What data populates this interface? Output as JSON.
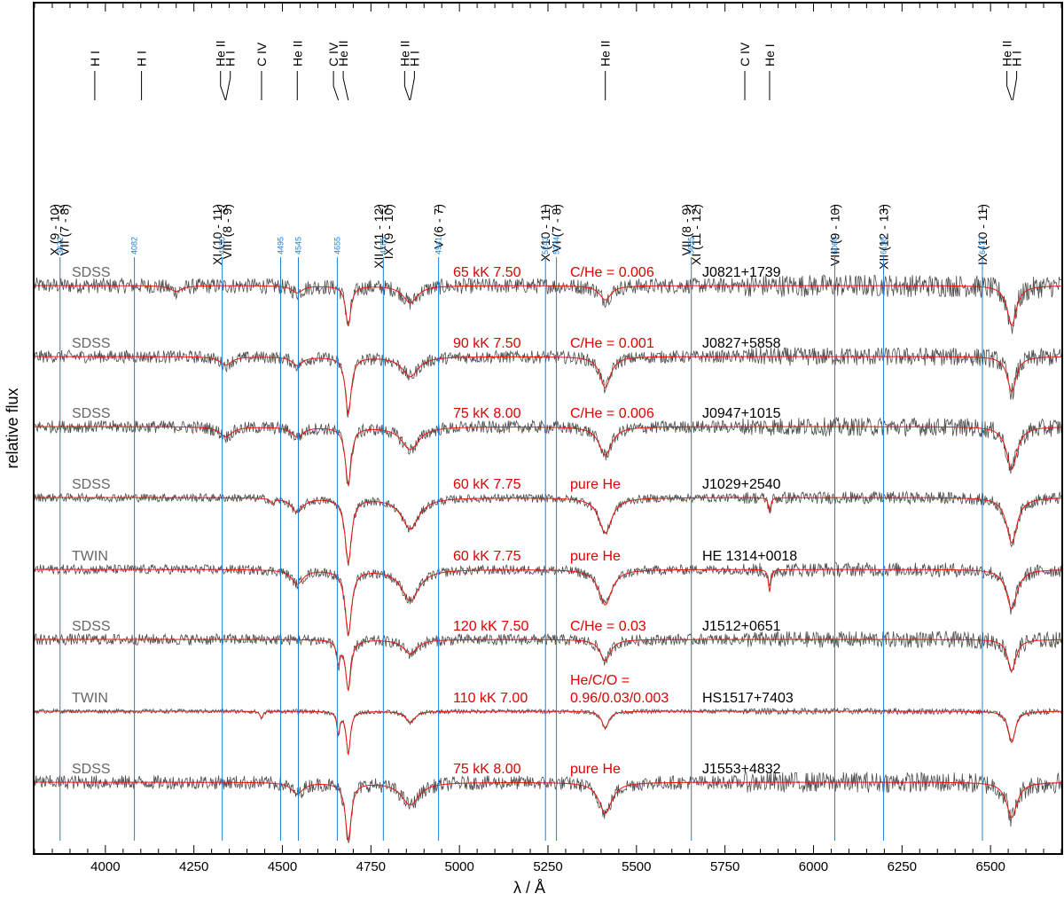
{
  "chart_data": {
    "type": "line",
    "xlabel": "λ / Å",
    "ylabel": "relative flux",
    "xlim": [
      3800,
      6700
    ],
    "x_ticks": [
      4000,
      4250,
      4500,
      4750,
      5000,
      5250,
      5500,
      5750,
      6000,
      6250,
      6500
    ],
    "grid": false,
    "colors": {
      "observed": "#4d4d4d",
      "model": "#e8190f",
      "marker": "#1e7fd6",
      "model_text": "#e00000",
      "source": "#666666"
    },
    "line_ids": [
      {
        "label": "H I",
        "x": 3970
      },
      {
        "label": "H I",
        "x": 4102
      },
      {
        "label": "He II",
        "x": 4339
      },
      {
        "label": "H I",
        "x": 4340
      },
      {
        "label": "C IV",
        "x": 4441
      },
      {
        "label": "He II",
        "x": 4542
      },
      {
        "label": "C IV",
        "x": 4658
      },
      {
        "label": "He II",
        "x": 4686
      },
      {
        "label": "He II",
        "x": 4859
      },
      {
        "label": "H I",
        "x": 4861
      },
      {
        "label": "He II",
        "x": 5412
      },
      {
        "label": "C IV",
        "x": 5806
      },
      {
        "label": "He I",
        "x": 5876
      },
      {
        "label": "He II",
        "x": 6560
      },
      {
        "label": "H I",
        "x": 6563
      }
    ],
    "ultra_high_excitation_ids": [
      {
        "label": "X (9 - 10)",
        "x": 3870
      },
      {
        "label": "VII (7 - 8)",
        "x": 3872
      },
      {
        "label": "XI (10 - 11)",
        "x": 4330
      },
      {
        "label": "VIII (8 - 9)",
        "x": 4332
      },
      {
        "label": "XII (11 - 12)",
        "x": 4785
      },
      {
        "label": "IX (9 - 10)",
        "x": 4788
      },
      {
        "label": "V (6 - 7)",
        "x": 4941
      },
      {
        "label": "X (10 - 11)",
        "x": 5243
      },
      {
        "label": "VI (7 - 8)",
        "x": 5274
      },
      {
        "label": "VII (8 - 9)",
        "x": 5655
      },
      {
        "label": "XI (11 - 12)",
        "x": 5660
      },
      {
        "label": "VIII (9 - 10)",
        "x": 6060
      },
      {
        "label": "XII (12 - 13)",
        "x": 6198
      },
      {
        "label": "IX (10 - 11)",
        "x": 6477
      }
    ],
    "markers": [
      {
        "label": "3872",
        "x": 3872
      },
      {
        "label": "4082",
        "x": 4082
      },
      {
        "label": "4330",
        "x": 4330
      },
      {
        "label": "4495",
        "x": 4495
      },
      {
        "label": "4545",
        "x": 4545
      },
      {
        "label": "4655",
        "x": 4655
      },
      {
        "label": "4785",
        "x": 4785
      },
      {
        "label": "4941",
        "x": 4941
      },
      {
        "label": "5243",
        "x": 5243
      },
      {
        "label": "5274",
        "x": 5274
      },
      {
        "label": "5655",
        "x": 5655
      },
      {
        "label": "6060",
        "x": 6060
      },
      {
        "label": "6198",
        "x": 6198
      },
      {
        "label": "6477",
        "x": 6477
      }
    ],
    "series": [
      {
        "name": "J0821+1739",
        "source": "SDSS",
        "model": "65 kK 7.50",
        "composition": [
          "C/He = 0.006"
        ],
        "noise": 0.055,
        "features": [
          {
            "x": 4686,
            "depth": 0.28,
            "width": 9
          },
          {
            "x": 4861,
            "depth": 0.12,
            "width": 25
          },
          {
            "x": 5412,
            "depth": 0.1,
            "width": 20
          },
          {
            "x": 6560,
            "depth": 0.28,
            "width": 16
          },
          {
            "x": 4542,
            "depth": 0.05,
            "width": 18
          },
          {
            "x": 4200,
            "depth": 0.04,
            "width": 20
          }
        ]
      },
      {
        "name": "J0827+5858",
        "source": "SDSS",
        "model": "90 kK 7.50",
        "composition": [
          "C/He = 0.001"
        ],
        "noise": 0.045,
        "features": [
          {
            "x": 4686,
            "depth": 0.4,
            "width": 10
          },
          {
            "x": 4861,
            "depth": 0.14,
            "width": 28
          },
          {
            "x": 5412,
            "depth": 0.22,
            "width": 18
          },
          {
            "x": 6560,
            "depth": 0.25,
            "width": 15
          },
          {
            "x": 4542,
            "depth": 0.06,
            "width": 18
          },
          {
            "x": 4340,
            "depth": 0.06,
            "width": 20
          }
        ]
      },
      {
        "name": "J0947+1015",
        "source": "SDSS",
        "model": "75 kK 8.00",
        "composition": [
          "C/He = 0.006"
        ],
        "noise": 0.045,
        "features": [
          {
            "x": 4686,
            "depth": 0.4,
            "width": 10
          },
          {
            "x": 4861,
            "depth": 0.16,
            "width": 30
          },
          {
            "x": 5412,
            "depth": 0.2,
            "width": 22
          },
          {
            "x": 6560,
            "depth": 0.3,
            "width": 18
          },
          {
            "x": 4542,
            "depth": 0.07,
            "width": 20
          },
          {
            "x": 4340,
            "depth": 0.07,
            "width": 22
          }
        ]
      },
      {
        "name": "J1029+2540",
        "source": "SDSS",
        "model": "60 kK 7.75",
        "composition": [
          "pure He"
        ],
        "noise": 0.03,
        "features": [
          {
            "x": 4686,
            "depth": 0.45,
            "width": 11
          },
          {
            "x": 4861,
            "depth": 0.22,
            "width": 30
          },
          {
            "x": 5412,
            "depth": 0.25,
            "width": 22
          },
          {
            "x": 6560,
            "depth": 0.32,
            "width": 18
          },
          {
            "x": 4542,
            "depth": 0.1,
            "width": 20
          },
          {
            "x": 5876,
            "depth": 0.1,
            "width": 4
          },
          {
            "x": 4472,
            "depth": 0.04,
            "width": 6
          }
        ]
      },
      {
        "name": "HE 1314+0018",
        "source": "TWIN",
        "model": "60 kK 7.75",
        "composition": [
          "pure He"
        ],
        "noise": 0.035,
        "features": [
          {
            "x": 4686,
            "depth": 0.45,
            "width": 11
          },
          {
            "x": 4861,
            "depth": 0.22,
            "width": 30
          },
          {
            "x": 5412,
            "depth": 0.25,
            "width": 22
          },
          {
            "x": 6560,
            "depth": 0.28,
            "width": 18
          },
          {
            "x": 4542,
            "depth": 0.1,
            "width": 20
          },
          {
            "x": 5876,
            "depth": 0.16,
            "width": 4
          }
        ]
      },
      {
        "name": "J1512+0651",
        "source": "SDSS",
        "model": "120 kK 7.50",
        "composition": [
          "C/He = 0.03"
        ],
        "noise": 0.04,
        "features": [
          {
            "x": 4686,
            "depth": 0.35,
            "width": 9
          },
          {
            "x": 4861,
            "depth": 0.1,
            "width": 24
          },
          {
            "x": 5412,
            "depth": 0.15,
            "width": 18
          },
          {
            "x": 6560,
            "depth": 0.22,
            "width": 14
          },
          {
            "x": 4658,
            "depth": 0.15,
            "width": 6
          }
        ]
      },
      {
        "name": "HS1517+7403",
        "source": "TWIN",
        "model": "110 kK 7.00",
        "composition": [
          "He/C/O =",
          "0.96/0.03/0.003"
        ],
        "noise": 0.015,
        "features": [
          {
            "x": 4686,
            "depth": 0.3,
            "width": 7
          },
          {
            "x": 4658,
            "depth": 0.15,
            "width": 5
          },
          {
            "x": 4861,
            "depth": 0.08,
            "width": 16
          },
          {
            "x": 5412,
            "depth": 0.12,
            "width": 12
          },
          {
            "x": 6560,
            "depth": 0.22,
            "width": 12
          },
          {
            "x": 4441,
            "depth": 0.05,
            "width": 5
          }
        ]
      },
      {
        "name": "J1553+4832",
        "source": "SDSS",
        "model": "75 kK 8.00",
        "composition": [
          "pure He"
        ],
        "noise": 0.05,
        "features": [
          {
            "x": 4686,
            "depth": 0.4,
            "width": 10
          },
          {
            "x": 4861,
            "depth": 0.16,
            "width": 30
          },
          {
            "x": 5412,
            "depth": 0.22,
            "width": 22
          },
          {
            "x": 6560,
            "depth": 0.25,
            "width": 18
          },
          {
            "x": 4542,
            "depth": 0.08,
            "width": 20
          }
        ]
      }
    ]
  }
}
